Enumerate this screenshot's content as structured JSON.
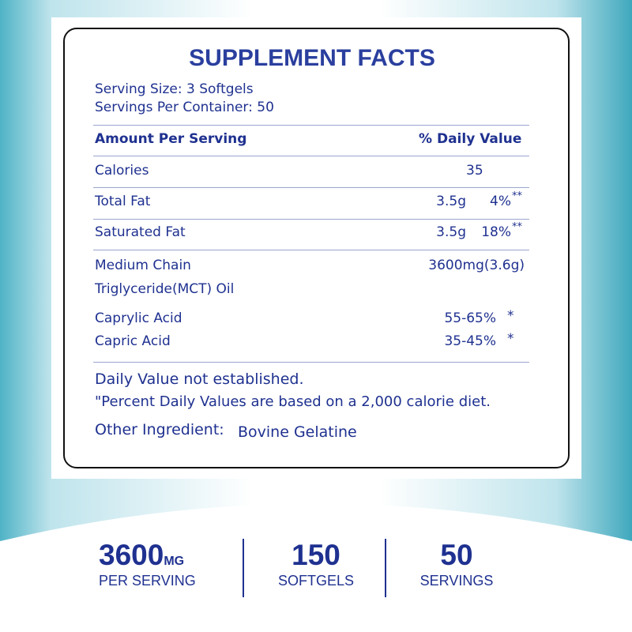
{
  "panel": {
    "title": "SUPPLEMENT FACTS",
    "serving_size": "Serving Size: 3 Softgels",
    "servings_per_container": "Servings Per Container: 50",
    "header": {
      "amount": "Amount Per Serving",
      "daily_value": "% Daily Value"
    },
    "rows": [
      {
        "name": "Calories",
        "amount": "35"
      },
      {
        "name": "Total Fat",
        "amount": "3.5g",
        "dv": "4%",
        "note": "**"
      },
      {
        "name": "Saturated Fat",
        "amount": "3.5g",
        "dv": "18%",
        "note": "**"
      },
      {
        "name": [
          "Medium Chain",
          "Triglyceride(MCT) Oil"
        ],
        "amount": "3600mg(3.6g)"
      },
      {
        "name": "Caprylic Acid",
        "amount": "55-65%",
        "note": "*"
      },
      {
        "name": "Capric Acid",
        "amount": "35-45%",
        "note": "*"
      }
    ],
    "footnotes": [
      "Daily Value not established.",
      "\"Percent Daily Values are based on a 2,000 calorie diet."
    ],
    "other_ingredient": {
      "label": "Other Ingredient:",
      "value": "Bovine Gelatine"
    }
  },
  "stats": [
    {
      "value": "3600",
      "unit": "MG",
      "label": "PER SERVING"
    },
    {
      "value": "150",
      "label": "SOFTGELS"
    },
    {
      "value": "50",
      "label": "SERVINGS"
    }
  ]
}
